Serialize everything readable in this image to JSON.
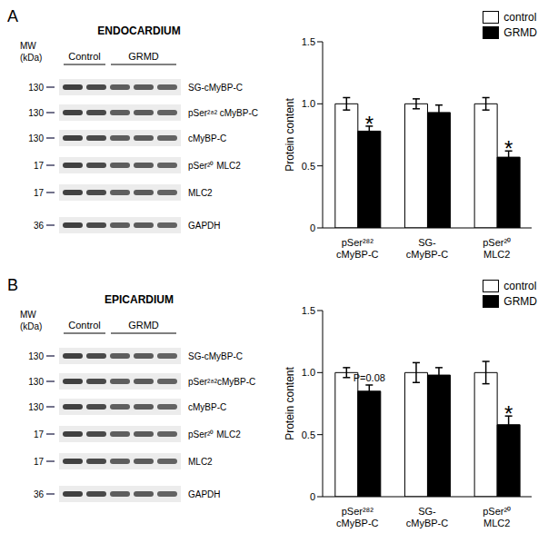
{
  "chart_data": [
    {
      "type": "bar",
      "panel": "A",
      "title": "ENDOCARDIUM",
      "y_label": "Protein content",
      "categories": [
        "pSer²⁸² cMyBP-C",
        "SG- cMyBP-C",
        "pSer²⁰ MLC2"
      ],
      "series": [
        {
          "name": "control",
          "color": "#ffffff",
          "values": [
            1.0,
            1.0,
            1.0
          ],
          "errors": [
            0.05,
            0.04,
            0.05
          ]
        },
        {
          "name": "GRMD",
          "color": "#000000",
          "values": [
            0.78,
            0.93,
            0.57
          ],
          "errors": [
            0.04,
            0.06,
            0.05
          ]
        }
      ],
      "ylim": [
        0,
        1.5
      ],
      "yticks": [
        0,
        0.5,
        {
          "value": 1,
          "label": "1.0"
        },
        1.5
      ],
      "legend": "upper right",
      "annotations": [
        {
          "text": "*",
          "category": "pSer²⁸² cMyBP-C",
          "series": "GRMD"
        },
        {
          "text": "*",
          "category": "pSer²⁰ MLC2",
          "series": "GRMD"
        }
      ],
      "blot": {
        "mw_label": [
          "MW",
          "(kDa)"
        ],
        "groups": [
          {
            "name": "Control",
            "lanes": 2
          },
          {
            "name": "GRMD",
            "lanes": 3
          }
        ],
        "rows": [
          {
            "label": "SG-cMyBP-C",
            "mw": 130
          },
          {
            "label": "pSer²⁸² cMyBP-C",
            "mw": 130
          },
          {
            "label": "cMyBP-C",
            "mw": 130
          },
          {
            "label": "pSer²⁰ MLC2",
            "mw": 17
          },
          {
            "label": "MLC2",
            "mw": 17
          },
          {
            "label": "GAPDH",
            "mw": 36
          }
        ]
      }
    },
    {
      "type": "bar",
      "panel": "B",
      "title": "EPICARDIUM",
      "y_label": "Protein content",
      "categories": [
        "pSer²⁸² cMyBP-C",
        "SG- cMyBP-C",
        "pSer²⁰ MLC2"
      ],
      "series": [
        {
          "name": "control",
          "color": "#ffffff",
          "values": [
            1.0,
            1.0,
            1.0
          ],
          "errors": [
            0.04,
            0.08,
            0.09
          ]
        },
        {
          "name": "GRMD",
          "color": "#000000",
          "values": [
            0.85,
            0.98,
            0.58
          ],
          "errors": [
            0.05,
            0.06,
            0.07
          ]
        }
      ],
      "ylim": [
        0,
        1.5
      ],
      "yticks": [
        0,
        0.5,
        {
          "value": 1,
          "label": "1.0"
        },
        1.5
      ],
      "legend": "upper right",
      "annotations": [
        {
          "text": "P=0.08",
          "category": "pSer²⁸² cMyBP-C",
          "series": "GRMD"
        },
        {
          "text": "*",
          "category": "pSer²⁰ MLC2",
          "series": "GRMD"
        }
      ],
      "blot": {
        "mw_label": [
          "MW",
          "(kDa)"
        ],
        "groups": [
          {
            "name": "Control",
            "lanes": 2
          },
          {
            "name": "GRMD",
            "lanes": 3
          }
        ],
        "rows": [
          {
            "label": "SG-cMyBP-C",
            "mw": 130
          },
          {
            "label": "pSer²⁸²cMyBP-C",
            "mw": 130
          },
          {
            "label": "cMyBP-C",
            "mw": 130
          },
          {
            "label": "pSer²⁰ MLC2",
            "mw": 17
          },
          {
            "label": "MLC2",
            "mw": 17
          },
          {
            "label": "GAPDH",
            "mw": 36
          }
        ]
      }
    }
  ]
}
